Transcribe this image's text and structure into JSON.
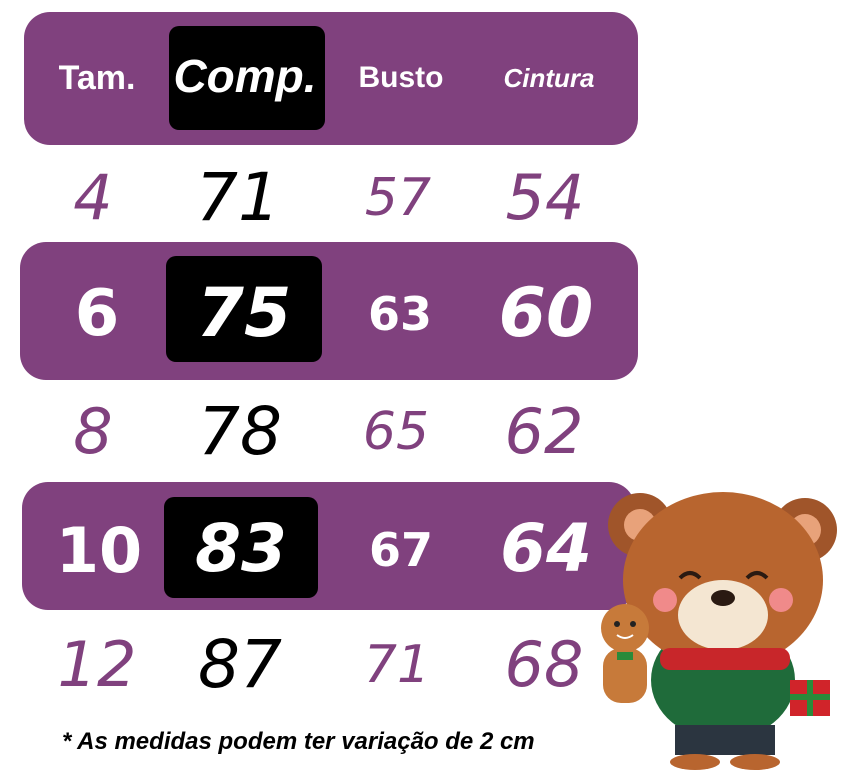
{
  "headers": {
    "size": "Tam.",
    "length": "Comp.",
    "bust": "Busto",
    "waist": "Cintura"
  },
  "rows": [
    {
      "size": "4",
      "length": "71",
      "bust": "57",
      "waist": "54",
      "highlighted": false
    },
    {
      "size": "6",
      "length": "75",
      "bust": "63",
      "waist": "60",
      "highlighted": true
    },
    {
      "size": "8",
      "length": "78",
      "bust": "65",
      "waist": "62",
      "highlighted": false
    },
    {
      "size": "10",
      "length": "83",
      "bust": "67",
      "waist": "64",
      "highlighted": true
    },
    {
      "size": "12",
      "length": "87",
      "bust": "71",
      "waist": "68",
      "highlighted": false
    }
  ],
  "footnote": "* As medidas podem ter variação de 2 cm",
  "colors": {
    "band": "#80417e",
    "highlight_box": "#000000",
    "text_light": "#ffffff"
  },
  "decoration": "teddy-bear-with-gingerbread-and-gift"
}
